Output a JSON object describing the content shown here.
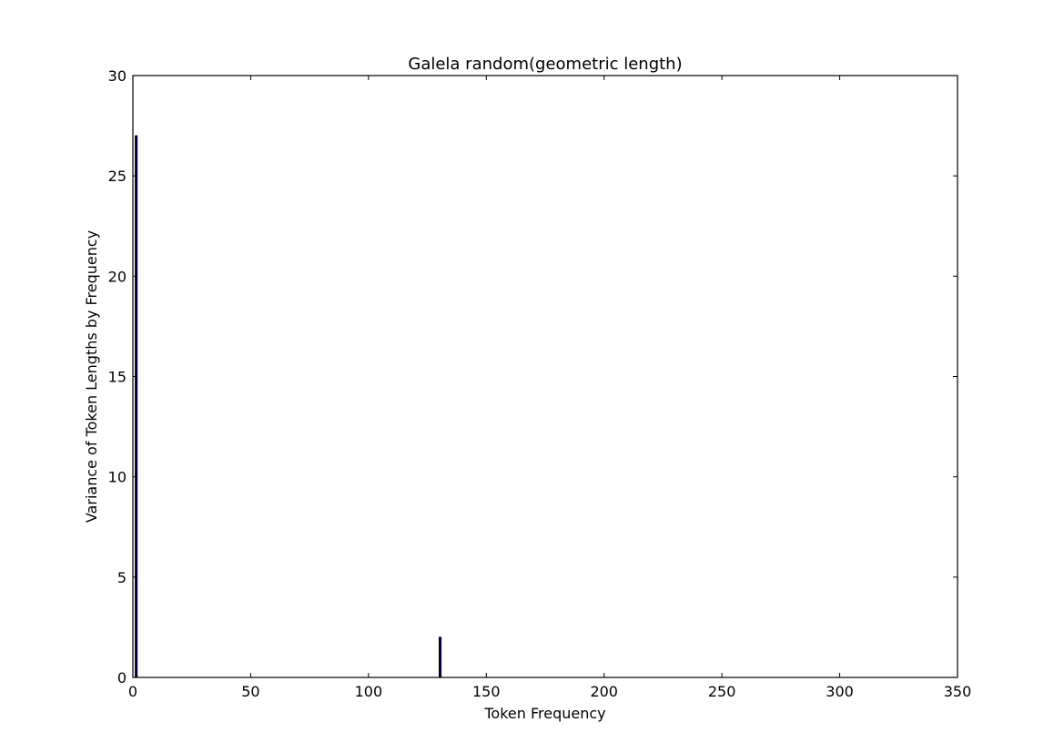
{
  "chart_data": {
    "type": "bar",
    "title": "Galela random(geometric length)",
    "xlabel": "Token Frequency",
    "ylabel": "Variance of Token Lengths by Frequency",
    "xlim": [
      0,
      350
    ],
    "ylim": [
      0,
      30
    ],
    "xticks": [
      0,
      50,
      100,
      150,
      200,
      250,
      300,
      350
    ],
    "yticks": [
      0,
      5,
      10,
      15,
      20,
      25,
      30
    ],
    "bar_color": "#000080",
    "grid": false,
    "bars": [
      {
        "x": 1,
        "value": 27
      },
      {
        "x": 130,
        "value": 2
      }
    ]
  }
}
